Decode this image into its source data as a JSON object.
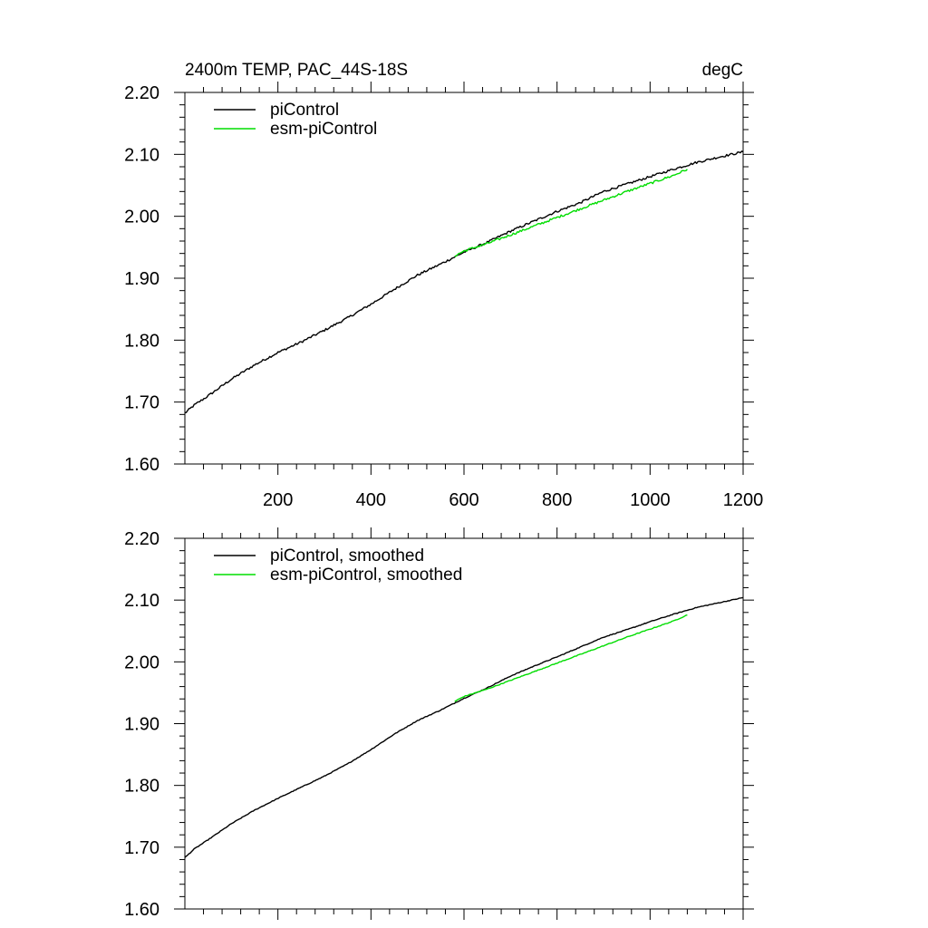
{
  "figure": {
    "title_left": "2400m TEMP, PAC_44S-18S",
    "title_right": "degC"
  },
  "colors": {
    "piControl": "#000000",
    "esm_piControl": "#00dd00",
    "axes": "#000000"
  },
  "chart_data": [
    {
      "type": "line",
      "title": "",
      "xlabel": "",
      "ylabel": "",
      "xlim": [
        0,
        1200
      ],
      "ylim": [
        1.6,
        2.2
      ],
      "x_tick_values": [
        200,
        400,
        600,
        800,
        1000,
        1200
      ],
      "x_tick_labels": [
        "200",
        "400",
        "600",
        "800",
        "1000",
        "1200"
      ],
      "y_tick_values": [
        1.6,
        1.7,
        1.8,
        1.9,
        2.0,
        2.1,
        2.2
      ],
      "y_tick_labels": [
        "1.60",
        "1.70",
        "1.80",
        "1.90",
        "2.00",
        "2.10",
        "2.20"
      ],
      "legend_position": "top-left",
      "series": [
        {
          "name": "piControl",
          "color": "#000000",
          "x": [
            0,
            20,
            50,
            100,
            150,
            200,
            250,
            300,
            350,
            400,
            450,
            500,
            550,
            600,
            650,
            700,
            750,
            800,
            850,
            900,
            950,
            1000,
            1050,
            1100,
            1150,
            1200
          ],
          "y": [
            1.682,
            1.695,
            1.71,
            1.737,
            1.76,
            1.78,
            1.797,
            1.816,
            1.836,
            1.858,
            1.882,
            1.905,
            1.923,
            1.942,
            1.958,
            1.976,
            1.992,
            2.008,
            2.022,
            2.04,
            2.052,
            2.064,
            2.076,
            2.087,
            2.096,
            2.104
          ]
        },
        {
          "name": "esm-piControl",
          "color": "#00dd00",
          "x": [
            580,
            600,
            650,
            700,
            750,
            800,
            850,
            900,
            950,
            1000,
            1050,
            1080
          ],
          "y": [
            1.936,
            1.944,
            1.956,
            1.97,
            1.984,
            1.998,
            2.012,
            2.026,
            2.04,
            2.053,
            2.066,
            2.076
          ]
        }
      ]
    },
    {
      "type": "line",
      "title": "",
      "xlabel": "",
      "ylabel": "",
      "xlim": [
        0,
        1200
      ],
      "ylim": [
        1.6,
        2.2
      ],
      "x_tick_values": [
        200,
        400,
        600,
        800,
        1000,
        1200
      ],
      "x_tick_labels": [],
      "y_tick_values": [
        1.6,
        1.7,
        1.8,
        1.9,
        2.0,
        2.1,
        2.2
      ],
      "y_tick_labels": [
        "1.60",
        "1.70",
        "1.80",
        "1.90",
        "2.00",
        "2.10",
        "2.20"
      ],
      "legend_position": "top-left",
      "series": [
        {
          "name": "piControl, smoothed",
          "color": "#000000",
          "x": [
            0,
            20,
            50,
            100,
            150,
            200,
            250,
            300,
            350,
            400,
            450,
            500,
            550,
            600,
            650,
            700,
            750,
            800,
            850,
            900,
            950,
            1000,
            1050,
            1100,
            1150,
            1200
          ],
          "y": [
            1.683,
            1.697,
            1.712,
            1.738,
            1.76,
            1.779,
            1.797,
            1.815,
            1.835,
            1.858,
            1.883,
            1.905,
            1.922,
            1.941,
            1.958,
            1.977,
            1.993,
            2.008,
            2.024,
            2.04,
            2.052,
            2.065,
            2.077,
            2.088,
            2.096,
            2.104
          ]
        },
        {
          "name": "esm-piControl, smoothed",
          "color": "#00dd00",
          "x": [
            580,
            600,
            650,
            700,
            750,
            800,
            850,
            900,
            950,
            1000,
            1050,
            1080
          ],
          "y": [
            1.936,
            1.944,
            1.956,
            1.97,
            1.984,
            1.998,
            2.012,
            2.026,
            2.04,
            2.053,
            2.066,
            2.076
          ]
        }
      ]
    }
  ]
}
